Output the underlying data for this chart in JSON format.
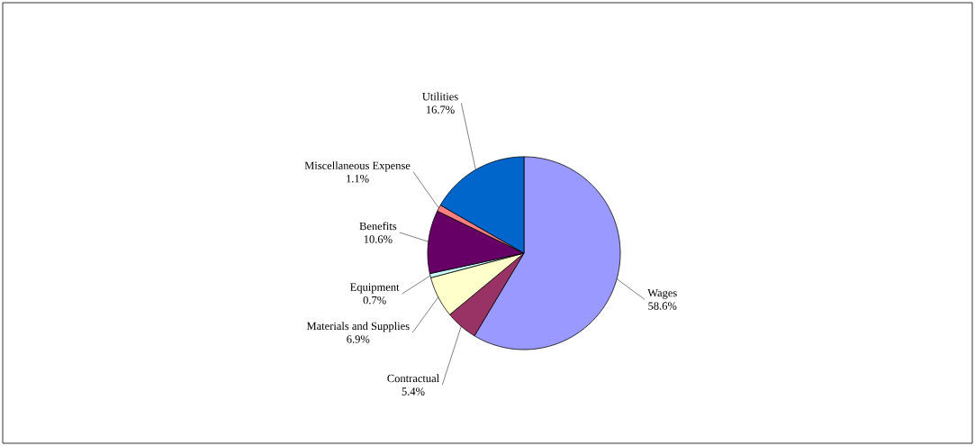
{
  "chart_data": {
    "type": "pie",
    "categories": [
      "Wages",
      "Contractual",
      "Materials and Supplies",
      "Equipment",
      "Benefits",
      "Miscellaneous Expense",
      "Utilities"
    ],
    "values": [
      58.6,
      5.4,
      6.9,
      0.7,
      10.6,
      1.1,
      16.7
    ],
    "value_labels": [
      "58.6%",
      "5.4%",
      "6.9%",
      "0.7%",
      "10.6%",
      "1.1%",
      "16.7%"
    ],
    "colors": [
      "#9999ff",
      "#993366",
      "#ffffcc",
      "#ccffff",
      "#660066",
      "#ff8080",
      "#0066cc"
    ]
  }
}
